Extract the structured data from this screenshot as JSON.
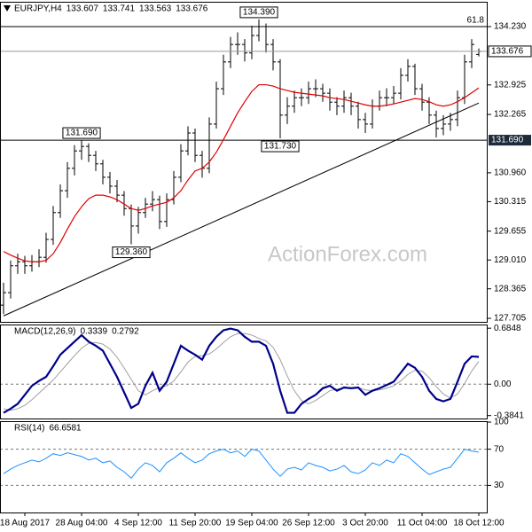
{
  "chart_data": [
    {
      "type": "ohlc",
      "title": "EURJPY,H4",
      "watermark": "ActionForex.com",
      "color": "#000000",
      "categories": [
        null,
        null,
        null,
        "18 Aug 2017",
        null,
        null,
        null,
        null,
        null,
        null,
        null,
        "28 Aug 04:00",
        null,
        null,
        null,
        null,
        null,
        null,
        null,
        "4 Sep 12:00",
        null,
        null,
        null,
        null,
        null,
        null,
        null,
        "11 Sep 20:00",
        null,
        null,
        null,
        null,
        null,
        null,
        null,
        "19 Sep 04:00",
        null,
        null,
        null,
        null,
        null,
        null,
        null,
        "26 Sep 12:00",
        null,
        null,
        null,
        null,
        null,
        null,
        null,
        "3 Oct 20:00",
        null,
        null,
        null,
        null,
        null,
        null,
        null,
        "11 Oct 04:00",
        null,
        null,
        null,
        null,
        null,
        null,
        null,
        "18 Oct 12:00"
      ],
      "open": [
        128.0,
        128.28,
        128.88,
        128.97,
        128.88,
        128.97,
        129.07,
        129.47,
        130.07,
        130.56,
        131.06,
        131.45,
        131.55,
        131.35,
        131.16,
        130.86,
        130.66,
        130.46,
        130.16,
        129.77,
        130.07,
        130.26,
        130.36,
        129.87,
        130.36,
        130.86,
        131.45,
        131.85,
        131.35,
        131.06,
        132.05,
        132.84,
        133.44,
        133.83,
        133.83,
        133.64,
        134.03,
        134.23,
        133.83,
        133.44,
        132.25,
        132.45,
        132.64,
        132.64,
        132.84,
        132.84,
        132.74,
        132.54,
        132.45,
        132.64,
        132.45,
        132.15,
        132.05,
        132.45,
        132.64,
        132.64,
        132.74,
        133.14,
        133.34,
        132.84,
        132.54,
        132.25,
        131.95,
        132.05,
        132.15,
        132.64,
        133.44,
        133.607
      ],
      "high": [
        128.5,
        129.0,
        129.15,
        129.1,
        129.12,
        129.25,
        129.62,
        130.22,
        130.7,
        131.2,
        131.58,
        131.69,
        131.62,
        131.45,
        131.25,
        130.98,
        130.8,
        130.55,
        130.25,
        130.2,
        130.4,
        130.55,
        130.45,
        130.5,
        131.0,
        131.6,
        132.0,
        131.95,
        131.45,
        132.2,
        133.0,
        133.6,
        134.0,
        134.1,
        133.95,
        134.25,
        134.39,
        134.3,
        133.95,
        133.5,
        132.65,
        132.8,
        132.85,
        133.0,
        133.05,
        132.95,
        132.85,
        132.65,
        132.8,
        132.75,
        132.55,
        132.3,
        132.6,
        132.8,
        132.85,
        132.9,
        133.3,
        133.5,
        133.4,
        132.95,
        132.65,
        132.35,
        132.25,
        132.3,
        132.8,
        133.6,
        133.95,
        133.741
      ],
      "low": [
        127.8,
        128.15,
        128.7,
        128.7,
        128.75,
        128.85,
        128.95,
        129.35,
        129.95,
        130.4,
        130.9,
        131.25,
        131.2,
        131.0,
        130.7,
        130.5,
        130.3,
        130.0,
        129.36,
        129.6,
        129.95,
        130.1,
        129.7,
        129.75,
        130.25,
        130.75,
        131.35,
        131.2,
        130.85,
        130.95,
        131.95,
        132.7,
        133.3,
        133.6,
        133.45,
        133.5,
        133.9,
        133.65,
        133.25,
        131.73,
        132.05,
        132.3,
        132.45,
        132.5,
        132.65,
        132.55,
        132.35,
        132.25,
        132.3,
        132.25,
        131.95,
        131.85,
        131.95,
        132.35,
        132.45,
        132.5,
        132.6,
        133.0,
        132.7,
        132.35,
        132.05,
        131.75,
        131.8,
        131.9,
        132.0,
        132.5,
        133.3,
        133.563
      ],
      "close": [
        128.28,
        128.88,
        128.97,
        128.88,
        128.97,
        129.07,
        129.47,
        130.07,
        130.56,
        131.06,
        131.45,
        131.55,
        131.35,
        131.16,
        130.86,
        130.66,
        130.46,
        130.16,
        129.77,
        130.07,
        130.26,
        130.36,
        129.87,
        130.36,
        130.86,
        131.45,
        131.85,
        131.35,
        131.06,
        132.05,
        132.84,
        133.44,
        133.83,
        133.83,
        133.64,
        134.03,
        134.23,
        133.83,
        133.44,
        132.25,
        132.45,
        132.64,
        132.64,
        132.84,
        132.84,
        132.74,
        132.54,
        132.45,
        132.64,
        132.45,
        132.15,
        132.05,
        132.45,
        132.64,
        132.64,
        132.74,
        133.14,
        133.34,
        132.84,
        132.54,
        132.25,
        131.95,
        132.05,
        132.15,
        132.64,
        133.44,
        133.83,
        133.676
      ],
      "ma": {
        "color": "#e00000",
        "values": [
          129.2,
          129.12,
          129.05,
          128.99,
          128.97,
          128.97,
          129.0,
          129.15,
          129.4,
          129.7,
          129.98,
          130.2,
          130.38,
          130.46,
          130.46,
          130.42,
          130.36,
          130.26,
          130.16,
          130.12,
          130.16,
          130.22,
          130.26,
          130.3,
          130.4,
          130.56,
          130.8,
          131.0,
          131.06,
          131.2,
          131.42,
          131.7,
          132.0,
          132.3,
          132.55,
          132.78,
          132.93,
          132.93,
          132.9,
          132.84,
          132.8,
          132.76,
          132.74,
          132.72,
          132.7,
          132.68,
          132.64,
          132.62,
          132.6,
          132.56,
          132.52,
          132.48,
          132.45,
          132.45,
          132.47,
          132.5,
          132.54,
          132.58,
          132.62,
          132.6,
          132.55,
          132.48,
          132.45,
          132.48,
          132.55,
          132.64,
          132.75,
          132.86
        ]
      },
      "ylim": [
        127.626,
        134.785
      ],
      "yticks": [
        {
          "value": 134.23,
          "label": "134.230"
        },
        132.925,
        132.265,
        {
          "value": 130.96,
          "label": "130.960"
        },
        130.315,
        129.655,
        {
          "value": 129.01,
          "label": "129.010"
        },
        128.365,
        127.705
      ],
      "levels": [
        {
          "value": 131.69,
          "label": "131.690"
        }
      ],
      "fib_levels": [
        {
          "value": 134.23,
          "label": "61.8"
        }
      ],
      "trendline": {
        "from": [
          0,
          127.76
        ],
        "to": [
          67,
          132.52
        ],
        "color": "#000000"
      },
      "annotations": [
        {
          "value": 134.39,
          "label": "134.390"
        },
        {
          "value": 131.69,
          "label": "131.690"
        },
        {
          "value": 131.73,
          "label": "131.730"
        },
        {
          "value": 129.36,
          "label": "129.360"
        }
      ]
    },
    {
      "type": "line",
      "title": "MACD(12,26,9)",
      "series": [
        {
          "color": "#00008b",
          "values": [
            -0.35,
            -0.3,
            -0.24,
            -0.13,
            -0.02,
            0.04,
            0.09,
            0.22,
            0.36,
            0.44,
            0.52,
            0.6,
            0.52,
            0.47,
            0.41,
            0.25,
            0.09,
            -0.1,
            -0.29,
            -0.24,
            -0.02,
            0.14,
            -0.08,
            0.03,
            0.25,
            0.47,
            0.41,
            0.36,
            0.3,
            0.47,
            0.58,
            0.66,
            0.68,
            0.66,
            0.58,
            0.52,
            0.52,
            0.47,
            0.25,
            -0.08,
            -0.35,
            -0.35,
            -0.24,
            -0.18,
            -0.13,
            -0.05,
            -0.02,
            -0.08,
            -0.04,
            -0.05,
            -0.04,
            -0.13,
            -0.08,
            -0.05,
            -0.01,
            0.03,
            0.14,
            0.25,
            0.2,
            0.09,
            -0.08,
            -0.18,
            -0.21,
            -0.18,
            0.03,
            0.25,
            0.34,
            0.3339
          ]
        },
        {
          "color": "#a0a0a0",
          "values": [
            -0.3,
            -0.32,
            -0.3,
            -0.26,
            -0.19,
            -0.11,
            -0.03,
            0.05,
            0.15,
            0.25,
            0.35,
            0.44,
            0.5,
            0.51,
            0.49,
            0.43,
            0.33,
            0.2,
            0.06,
            -0.08,
            -0.13,
            -0.08,
            -0.04,
            -0.02,
            0.04,
            0.15,
            0.27,
            0.34,
            0.35,
            0.37,
            0.43,
            0.51,
            0.58,
            0.62,
            0.62,
            0.6,
            0.56,
            0.53,
            0.45,
            0.3,
            0.1,
            -0.08,
            -0.2,
            -0.24,
            -0.2,
            -0.14,
            -0.08,
            -0.06,
            -0.05,
            -0.05,
            -0.04,
            -0.07,
            -0.08,
            -0.07,
            -0.05,
            -0.02,
            0.04,
            0.12,
            0.17,
            0.16,
            0.08,
            -0.03,
            -0.12,
            -0.17,
            -0.12,
            0.01,
            0.16,
            0.2792
          ]
        }
      ],
      "ylim": [
        -0.42,
        0.73
      ],
      "yticks": [
        0.6848,
        {
          "value": 0,
          "label": "0.00"
        },
        -0.3841
      ],
      "levels": [
        0
      ]
    },
    {
      "type": "line",
      "title": "RSI(14)",
      "series": [
        {
          "color": "#1e90ff",
          "values": [
            43,
            48,
            52,
            55,
            58,
            56,
            60,
            65,
            63,
            66,
            64,
            62,
            58,
            60,
            55,
            57,
            50,
            45,
            38,
            48,
            55,
            52,
            45,
            55,
            60,
            66,
            60,
            55,
            58,
            65,
            68,
            70,
            66,
            68,
            62,
            70,
            68,
            58,
            48,
            40,
            48,
            50,
            47,
            55,
            52,
            50,
            46,
            48,
            52,
            45,
            43,
            47,
            55,
            52,
            58,
            55,
            65,
            62,
            55,
            48,
            42,
            45,
            48,
            50,
            60,
            70,
            68,
            66.6581
          ]
        }
      ],
      "ylim": [
        0,
        101
      ],
      "yticks": [
        100,
        70,
        30
      ],
      "levels": [
        70,
        30
      ]
    }
  ]
}
